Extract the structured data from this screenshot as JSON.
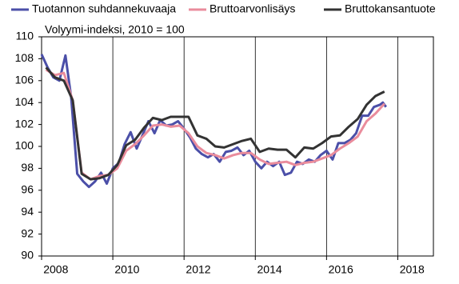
{
  "chart_data": {
    "type": "line",
    "subtitle": "Volyymi-indeksi, 2010 = 100",
    "xlim": [
      2008,
      2019
    ],
    "xticks": [
      2008,
      2010,
      2012,
      2014,
      2016,
      2018
    ],
    "ylim": [
      90,
      110
    ],
    "yticks": [
      90,
      92,
      94,
      96,
      98,
      100,
      102,
      104,
      106,
      108,
      110
    ],
    "grid": "x",
    "series": [
      {
        "name": "Tuotannon suhdannekuvaaja",
        "color": "#4b4fa8",
        "x": [
          2008.0,
          2008.17,
          2008.33,
          2008.5,
          2008.67,
          2008.83,
          2009.0,
          2009.17,
          2009.33,
          2009.5,
          2009.67,
          2009.83,
          2010.0,
          2010.17,
          2010.33,
          2010.5,
          2010.67,
          2010.83,
          2011.0,
          2011.17,
          2011.33,
          2011.5,
          2011.67,
          2011.83,
          2012.0,
          2012.17,
          2012.33,
          2012.5,
          2012.67,
          2012.83,
          2013.0,
          2013.17,
          2013.33,
          2013.5,
          2013.67,
          2013.83,
          2014.0,
          2014.17,
          2014.33,
          2014.5,
          2014.67,
          2014.83,
          2015.0,
          2015.17,
          2015.33,
          2015.5,
          2015.67,
          2015.83,
          2016.0,
          2016.17,
          2016.33,
          2016.5,
          2016.67,
          2016.83,
          2017.0,
          2017.17,
          2017.33,
          2017.5,
          2017.58,
          2017.67
        ],
        "values": [
          108.4,
          107.2,
          106.3,
          106.0,
          108.3,
          104.5,
          97.5,
          96.8,
          96.3,
          96.8,
          97.6,
          96.6,
          98.0,
          98.5,
          100.2,
          101.3,
          99.8,
          101.0,
          102.3,
          101.2,
          102.4,
          101.9,
          102.0,
          102.3,
          101.6,
          100.8,
          99.8,
          99.3,
          99.0,
          99.3,
          98.6,
          99.5,
          99.6,
          99.9,
          99.2,
          99.6,
          98.6,
          98.0,
          98.6,
          98.2,
          98.6,
          97.4,
          97.6,
          98.6,
          98.4,
          98.8,
          98.6,
          99.2,
          99.6,
          98.8,
          100.3,
          100.3,
          100.6,
          101.2,
          102.8,
          102.8,
          103.6,
          103.8,
          104.0,
          103.6
        ]
      },
      {
        "name": "Bruttoarvonlisäys",
        "color": "#ea8c9c",
        "x": [
          2008.125,
          2008.375,
          2008.625,
          2008.875,
          2009.125,
          2009.375,
          2009.625,
          2009.875,
          2010.125,
          2010.375,
          2010.625,
          2010.875,
          2011.125,
          2011.375,
          2011.625,
          2011.875,
          2012.125,
          2012.375,
          2012.625,
          2012.875,
          2013.125,
          2013.375,
          2013.625,
          2013.875,
          2014.125,
          2014.375,
          2014.625,
          2014.875,
          2015.125,
          2015.375,
          2015.625,
          2015.875,
          2016.125,
          2016.375,
          2016.625,
          2016.875,
          2017.125,
          2017.375,
          2017.625
        ],
        "values": [
          107.0,
          106.5,
          106.7,
          104.2,
          97.6,
          97.0,
          97.3,
          97.4,
          98.0,
          99.6,
          100.2,
          101.0,
          101.9,
          102.0,
          101.8,
          101.9,
          101.2,
          100.0,
          99.4,
          99.2,
          98.9,
          99.2,
          99.4,
          99.4,
          98.8,
          98.4,
          98.5,
          98.6,
          98.3,
          98.5,
          98.6,
          98.9,
          99.2,
          99.8,
          100.3,
          100.9,
          102.3,
          103.0,
          103.9
        ]
      },
      {
        "name": "Bruttokansantuote",
        "color": "#333333",
        "x": [
          2008.125,
          2008.375,
          2008.625,
          2008.875,
          2009.125,
          2009.375,
          2009.625,
          2009.875,
          2010.125,
          2010.375,
          2010.625,
          2010.875,
          2011.125,
          2011.375,
          2011.625,
          2011.875,
          2012.125,
          2012.375,
          2012.625,
          2012.875,
          2013.125,
          2013.375,
          2013.625,
          2013.875,
          2014.125,
          2014.375,
          2014.625,
          2014.875,
          2015.125,
          2015.375,
          2015.625,
          2015.875,
          2016.125,
          2016.375,
          2016.625,
          2016.875,
          2017.125,
          2017.375,
          2017.625
        ],
        "values": [
          107.2,
          106.3,
          106.0,
          104.2,
          97.5,
          97.0,
          97.1,
          97.4,
          98.3,
          100.1,
          100.6,
          101.7,
          102.6,
          102.4,
          102.7,
          102.7,
          102.7,
          101.0,
          100.7,
          100.0,
          99.9,
          100.2,
          100.5,
          100.7,
          99.5,
          99.8,
          99.7,
          99.7,
          99.0,
          99.9,
          99.8,
          100.3,
          100.9,
          101.0,
          101.8,
          102.5,
          103.8,
          104.6,
          105.0
        ]
      }
    ]
  }
}
